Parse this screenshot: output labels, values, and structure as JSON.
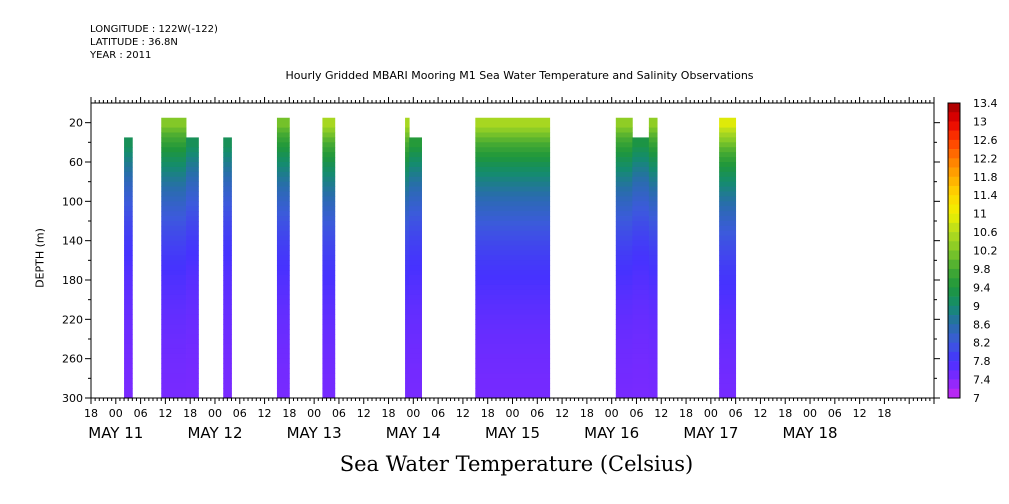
{
  "header": {
    "longitude": "LONGITUDE : 122W(-122)",
    "latitude": "LATITUDE : 36.8N",
    "year": "YEAR : 2011"
  },
  "chart_data": {
    "type": "heatmap",
    "title": "Hourly Gridded MBARI Mooring M1 Sea Water Temperature and Salinity Observations",
    "xlabel": "Sea Water Temperature (Celsius)",
    "ylabel": "DEPTH (m)",
    "x_unit": "hours since MAY 10 18:00",
    "xlim": [
      0,
      204
    ],
    "ylim": [
      300,
      0
    ],
    "y_ticks": [
      20,
      60,
      100,
      140,
      180,
      220,
      260,
      300
    ],
    "x_hour_ticks": [
      "18",
      "00",
      "06",
      "12",
      "18",
      "00",
      "06",
      "12",
      "18",
      "00",
      "06",
      "12",
      "18",
      "00",
      "06",
      "12",
      "18",
      "00",
      "06",
      "12",
      "18",
      "00",
      "06",
      "12",
      "18",
      "00",
      "06",
      "12",
      "18",
      "00",
      "06",
      "12",
      "18"
    ],
    "date_labels": [
      {
        "label": "MAY 11",
        "hour": 6
      },
      {
        "label": "MAY 12",
        "hour": 30
      },
      {
        "label": "MAY 13",
        "hour": 54
      },
      {
        "label": "MAY 14",
        "hour": 78
      },
      {
        "label": "MAY 15",
        "hour": 102
      },
      {
        "label": "MAY 16",
        "hour": 126
      },
      {
        "label": "MAY 17",
        "hour": 150
      },
      {
        "label": "MAY 18",
        "hour": 174
      }
    ],
    "colorbar": {
      "min": 7.0,
      "max": 13.4,
      "step": 0.2,
      "labels": [
        "13.4",
        "13",
        "12.6",
        "12.2",
        "11.8",
        "11.4",
        "11",
        "10.6",
        "10.2",
        "9.8",
        "9.4",
        "9",
        "8.6",
        "8.2",
        "7.8",
        "7.4",
        "7"
      ]
    },
    "segments": [
      {
        "start": 8,
        "end": 10,
        "top_depth": 40,
        "surface_temp": 9.8
      },
      {
        "start": 17,
        "end": 23,
        "top_depth": 20,
        "surface_temp": 10.3
      },
      {
        "start": 23,
        "end": 26,
        "top_depth": 40,
        "surface_temp": 9.8
      },
      {
        "start": 32,
        "end": 34,
        "top_depth": 40,
        "surface_temp": 9.8
      },
      {
        "start": 45,
        "end": 48,
        "top_depth": 20,
        "surface_temp": 10.2
      },
      {
        "start": 56,
        "end": 59,
        "top_depth": 20,
        "surface_temp": 10.6
      },
      {
        "start": 76,
        "end": 77,
        "top_depth": 20,
        "surface_temp": 10.6
      },
      {
        "start": 77,
        "end": 80,
        "top_depth": 40,
        "surface_temp": 10.2
      },
      {
        "start": 93,
        "end": 111,
        "top_depth": 20,
        "surface_temp": 10.6
      },
      {
        "start": 127,
        "end": 131,
        "top_depth": 20,
        "surface_temp": 10.4
      },
      {
        "start": 131,
        "end": 135,
        "top_depth": 40,
        "surface_temp": 10.0
      },
      {
        "start": 135,
        "end": 137,
        "top_depth": 20,
        "surface_temp": 10.4
      },
      {
        "start": 152,
        "end": 156,
        "top_depth": 20,
        "surface_temp": 11.0
      }
    ]
  }
}
